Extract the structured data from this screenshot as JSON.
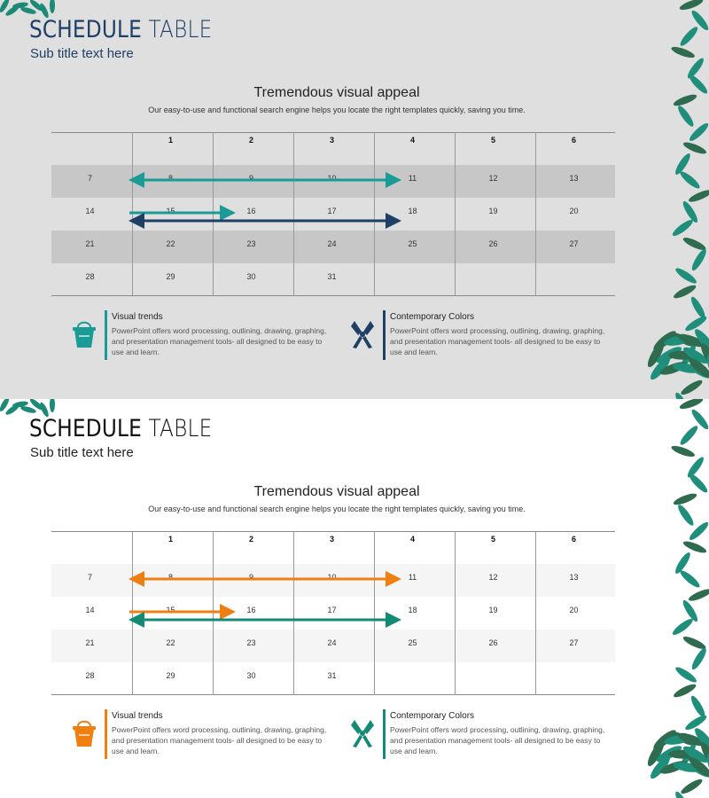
{
  "slides": [
    {
      "title_bold": "SCHEDULE",
      "title_light": "TABLE",
      "subtitle": "Sub title text here",
      "heading": "Tremendous visual appeal",
      "description": "Our easy-to-use and functional search engine helps you locate the right templates quickly, saving you time.",
      "colors": {
        "accent1": "#1a9b96",
        "accent2": "#1e3f66",
        "background": "#dfdfdf"
      },
      "features": [
        {
          "title": "Visual trends",
          "text": "PowerPoint offers word processing, outlining, drawing, graphing, and presentation management tools- all designed to be easy to use and learn.",
          "icon": "bucket-icon"
        },
        {
          "title": "Contemporary Colors",
          "text": "PowerPoint offers word processing, outlining, drawing, graphing, and presentation management tools- all designed to be easy to use and learn.",
          "icon": "pliers-icon"
        }
      ]
    },
    {
      "title_bold": "SCHEDULE",
      "title_light": "TABLE",
      "subtitle": "Sub title text here",
      "heading": "Tremendous visual appeal",
      "description": "Our easy-to-use and functional search engine helps you locate the right templates quickly, saving you time.",
      "colors": {
        "accent1": "#f07f12",
        "accent2": "#138a74",
        "background": "#ffffff"
      },
      "features": [
        {
          "title": "Visual trends",
          "text": "PowerPoint offers word processing, outlining, drawing, graphing, and presentation management tools- all designed to be easy to use and learn.",
          "icon": "bucket-icon"
        },
        {
          "title": "Contemporary Colors",
          "text": "PowerPoint offers word processing, outlining, drawing, graphing, and presentation management tools- all designed to be easy to use and learn.",
          "icon": "pliers-icon"
        }
      ]
    }
  ],
  "calendar": {
    "header": [
      "",
      "1",
      "2",
      "3",
      "4",
      "5",
      "6"
    ],
    "rows": [
      [
        "7",
        "8",
        "9",
        "10",
        "11",
        "12",
        "13"
      ],
      [
        "14",
        "15",
        "16",
        "17",
        "18",
        "19",
        "20"
      ],
      [
        "21",
        "22",
        "23",
        "24",
        "25",
        "26",
        "27"
      ],
      [
        "28",
        "29",
        "30",
        "31",
        "",
        "",
        ""
      ]
    ]
  }
}
